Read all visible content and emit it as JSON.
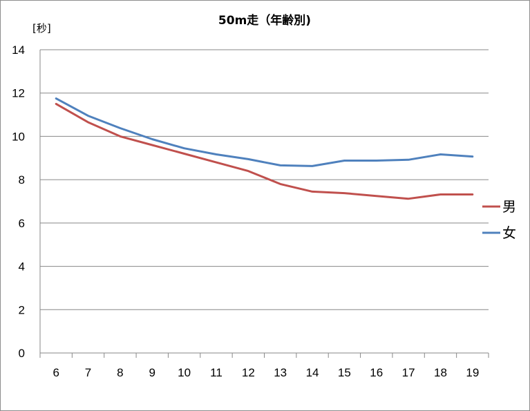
{
  "chart_data": {
    "type": "line",
    "title": "50m走（年齢別)",
    "ylabel": "[秒]",
    "xlabel": "",
    "categories": [
      "6",
      "7",
      "8",
      "9",
      "10",
      "11",
      "12",
      "13",
      "14",
      "15",
      "16",
      "17",
      "18",
      "19"
    ],
    "ylim": [
      0,
      14
    ],
    "yticks": [
      "0",
      "2",
      "4",
      "6",
      "8",
      "10",
      "12",
      "14"
    ],
    "grid": true,
    "legend_position": "right",
    "series": [
      {
        "name": "男",
        "color": "#c0504d",
        "values": [
          11.5,
          10.65,
          10.0,
          9.6,
          9.2,
          8.8,
          8.4,
          7.8,
          7.45,
          7.38,
          7.25,
          7.12,
          7.32,
          7.32
        ]
      },
      {
        "name": "女",
        "color": "#4f81bd",
        "values": [
          11.75,
          10.95,
          10.38,
          9.87,
          9.45,
          9.17,
          8.95,
          8.66,
          8.63,
          8.88,
          8.88,
          8.92,
          9.17,
          9.07
        ]
      }
    ]
  }
}
